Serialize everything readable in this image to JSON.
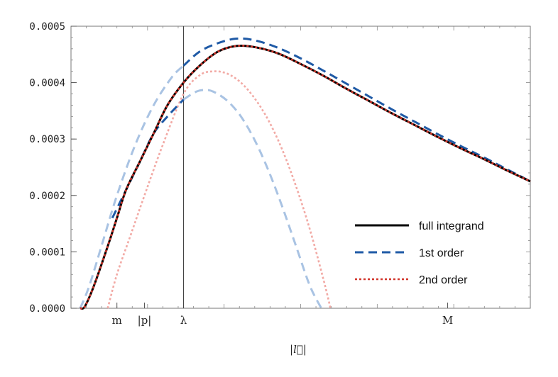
{
  "chart_data": {
    "type": "line",
    "title": "",
    "xlabel": "|l⃗|",
    "ylabel": "",
    "xlim": [
      0,
      1
    ],
    "ylim": [
      0,
      0.0005
    ],
    "y_ticks": [
      "0.0000",
      "0.0001",
      "0.0002",
      "0.0003",
      "0.0004",
      "0.0005"
    ],
    "y_tick_values": [
      0,
      0.0001,
      0.0002,
      0.0003,
      0.0004,
      0.0005
    ],
    "x_category_ticks": [
      {
        "label": "m",
        "x": 0.1
      },
      {
        "label": "|p|",
        "x": 0.16
      },
      {
        "label": "λ",
        "x": 0.245
      },
      {
        "label": "M",
        "x": 0.82
      }
    ],
    "vertical_line_x": 0.245,
    "legend_position": "bottom-right",
    "series": [
      {
        "name": "full integrand",
        "color": "#000000",
        "style": "solid",
        "x": [
          0.02,
          0.03,
          0.05,
          0.08,
          0.1,
          0.12,
          0.15,
          0.18,
          0.21,
          0.245,
          0.28,
          0.32,
          0.36,
          0.4,
          0.45,
          0.5,
          0.55,
          0.6,
          0.65,
          0.7,
          0.75,
          0.8,
          0.85,
          0.9,
          0.95,
          1.0
        ],
        "y": [
          0,
          3e-06,
          4e-05,
          0.00011,
          0.00016,
          0.00021,
          0.00026,
          0.00031,
          0.00036,
          0.0004,
          0.00043,
          0.000455,
          0.000465,
          0.000463,
          0.000452,
          0.000433,
          0.000412,
          0.000389,
          0.000367,
          0.000345,
          0.000324,
          0.000303,
          0.000283,
          0.000264,
          0.000244,
          0.000225
        ]
      },
      {
        "name": "2nd order",
        "color": "#d1352b",
        "style": "dotted",
        "x": [
          0.02,
          0.03,
          0.05,
          0.08,
          0.1,
          0.12,
          0.15,
          0.18,
          0.21,
          0.245,
          0.28,
          0.32,
          0.36,
          0.4,
          0.45,
          0.5,
          0.55,
          0.6,
          0.65,
          0.7,
          0.75,
          0.8,
          0.85,
          0.9,
          0.95,
          1.0
        ],
        "y": [
          0,
          3e-06,
          4e-05,
          0.00011,
          0.00016,
          0.00021,
          0.00026,
          0.00031,
          0.00036,
          0.0004,
          0.00043,
          0.000455,
          0.000465,
          0.000463,
          0.000452,
          0.000433,
          0.000412,
          0.000389,
          0.000367,
          0.000345,
          0.000324,
          0.000303,
          0.000283,
          0.000264,
          0.000244,
          0.000225
        ]
      },
      {
        "name": "1st order",
        "color": "#1f5aa6",
        "style": "dashed",
        "segments": [
          {
            "x": [
              0.09,
              0.12,
              0.15,
              0.18,
              0.21,
              0.245
            ],
            "y": [
              0.00016,
              0.00021,
              0.00026,
              0.00031,
              0.00034,
              0.00037
            ]
          },
          {
            "x": [
              0.245,
              0.28,
              0.32,
              0.36,
              0.4,
              0.45,
              0.5,
              0.55,
              0.6,
              0.65,
              0.7,
              0.75,
              0.8,
              0.85,
              0.9,
              0.95,
              1.0
            ],
            "y": [
              0.00043,
              0.000455,
              0.00047,
              0.000478,
              0.000475,
              0.000462,
              0.000443,
              0.000421,
              0.000398,
              0.000375,
              0.000352,
              0.00033,
              0.000308,
              0.000287,
              0.000267,
              0.000246,
              0.000225
            ]
          }
        ]
      },
      {
        "name": "",
        "color": "#a9c3e3",
        "style": "dashed",
        "x": [
          0.02,
          0.04,
          0.07,
          0.1,
          0.14,
          0.18,
          0.22,
          0.245
        ],
        "y": [
          0,
          4e-05,
          0.00012,
          0.0002,
          0.00029,
          0.00036,
          0.00041,
          0.00043
        ]
      },
      {
        "name": "",
        "color": "#a9c3e3",
        "style": "dashed",
        "x": [
          0.245,
          0.27,
          0.29,
          0.31,
          0.34,
          0.37,
          0.4,
          0.43,
          0.46,
          0.49,
          0.52,
          0.545
        ],
        "y": [
          0.00037,
          0.000383,
          0.000387,
          0.000384,
          0.000368,
          0.00034,
          0.000298,
          0.000244,
          0.00018,
          0.00011,
          4e-05,
          0
        ]
      },
      {
        "name": "",
        "color": "#f2aaa5",
        "style": "dotted",
        "x": [
          0.08,
          0.1,
          0.13,
          0.16,
          0.2,
          0.245,
          0.28,
          0.31,
          0.34,
          0.37,
          0.4,
          0.43,
          0.46,
          0.49,
          0.52,
          0.55,
          0.565
        ],
        "y": [
          0,
          6e-05,
          0.00013,
          0.0002,
          0.00029,
          0.00038,
          0.000413,
          0.00042,
          0.000416,
          0.0004,
          0.000372,
          0.000333,
          0.000281,
          0.000216,
          0.00014,
          5e-05,
          0
        ]
      }
    ],
    "legend": [
      {
        "label": "full integrand",
        "color": "#000000",
        "style": "solid"
      },
      {
        "label": "1st order",
        "color": "#1f5aa6",
        "style": "dashed"
      },
      {
        "label": "2nd order",
        "color": "#d1352b",
        "style": "dotted"
      }
    ]
  }
}
